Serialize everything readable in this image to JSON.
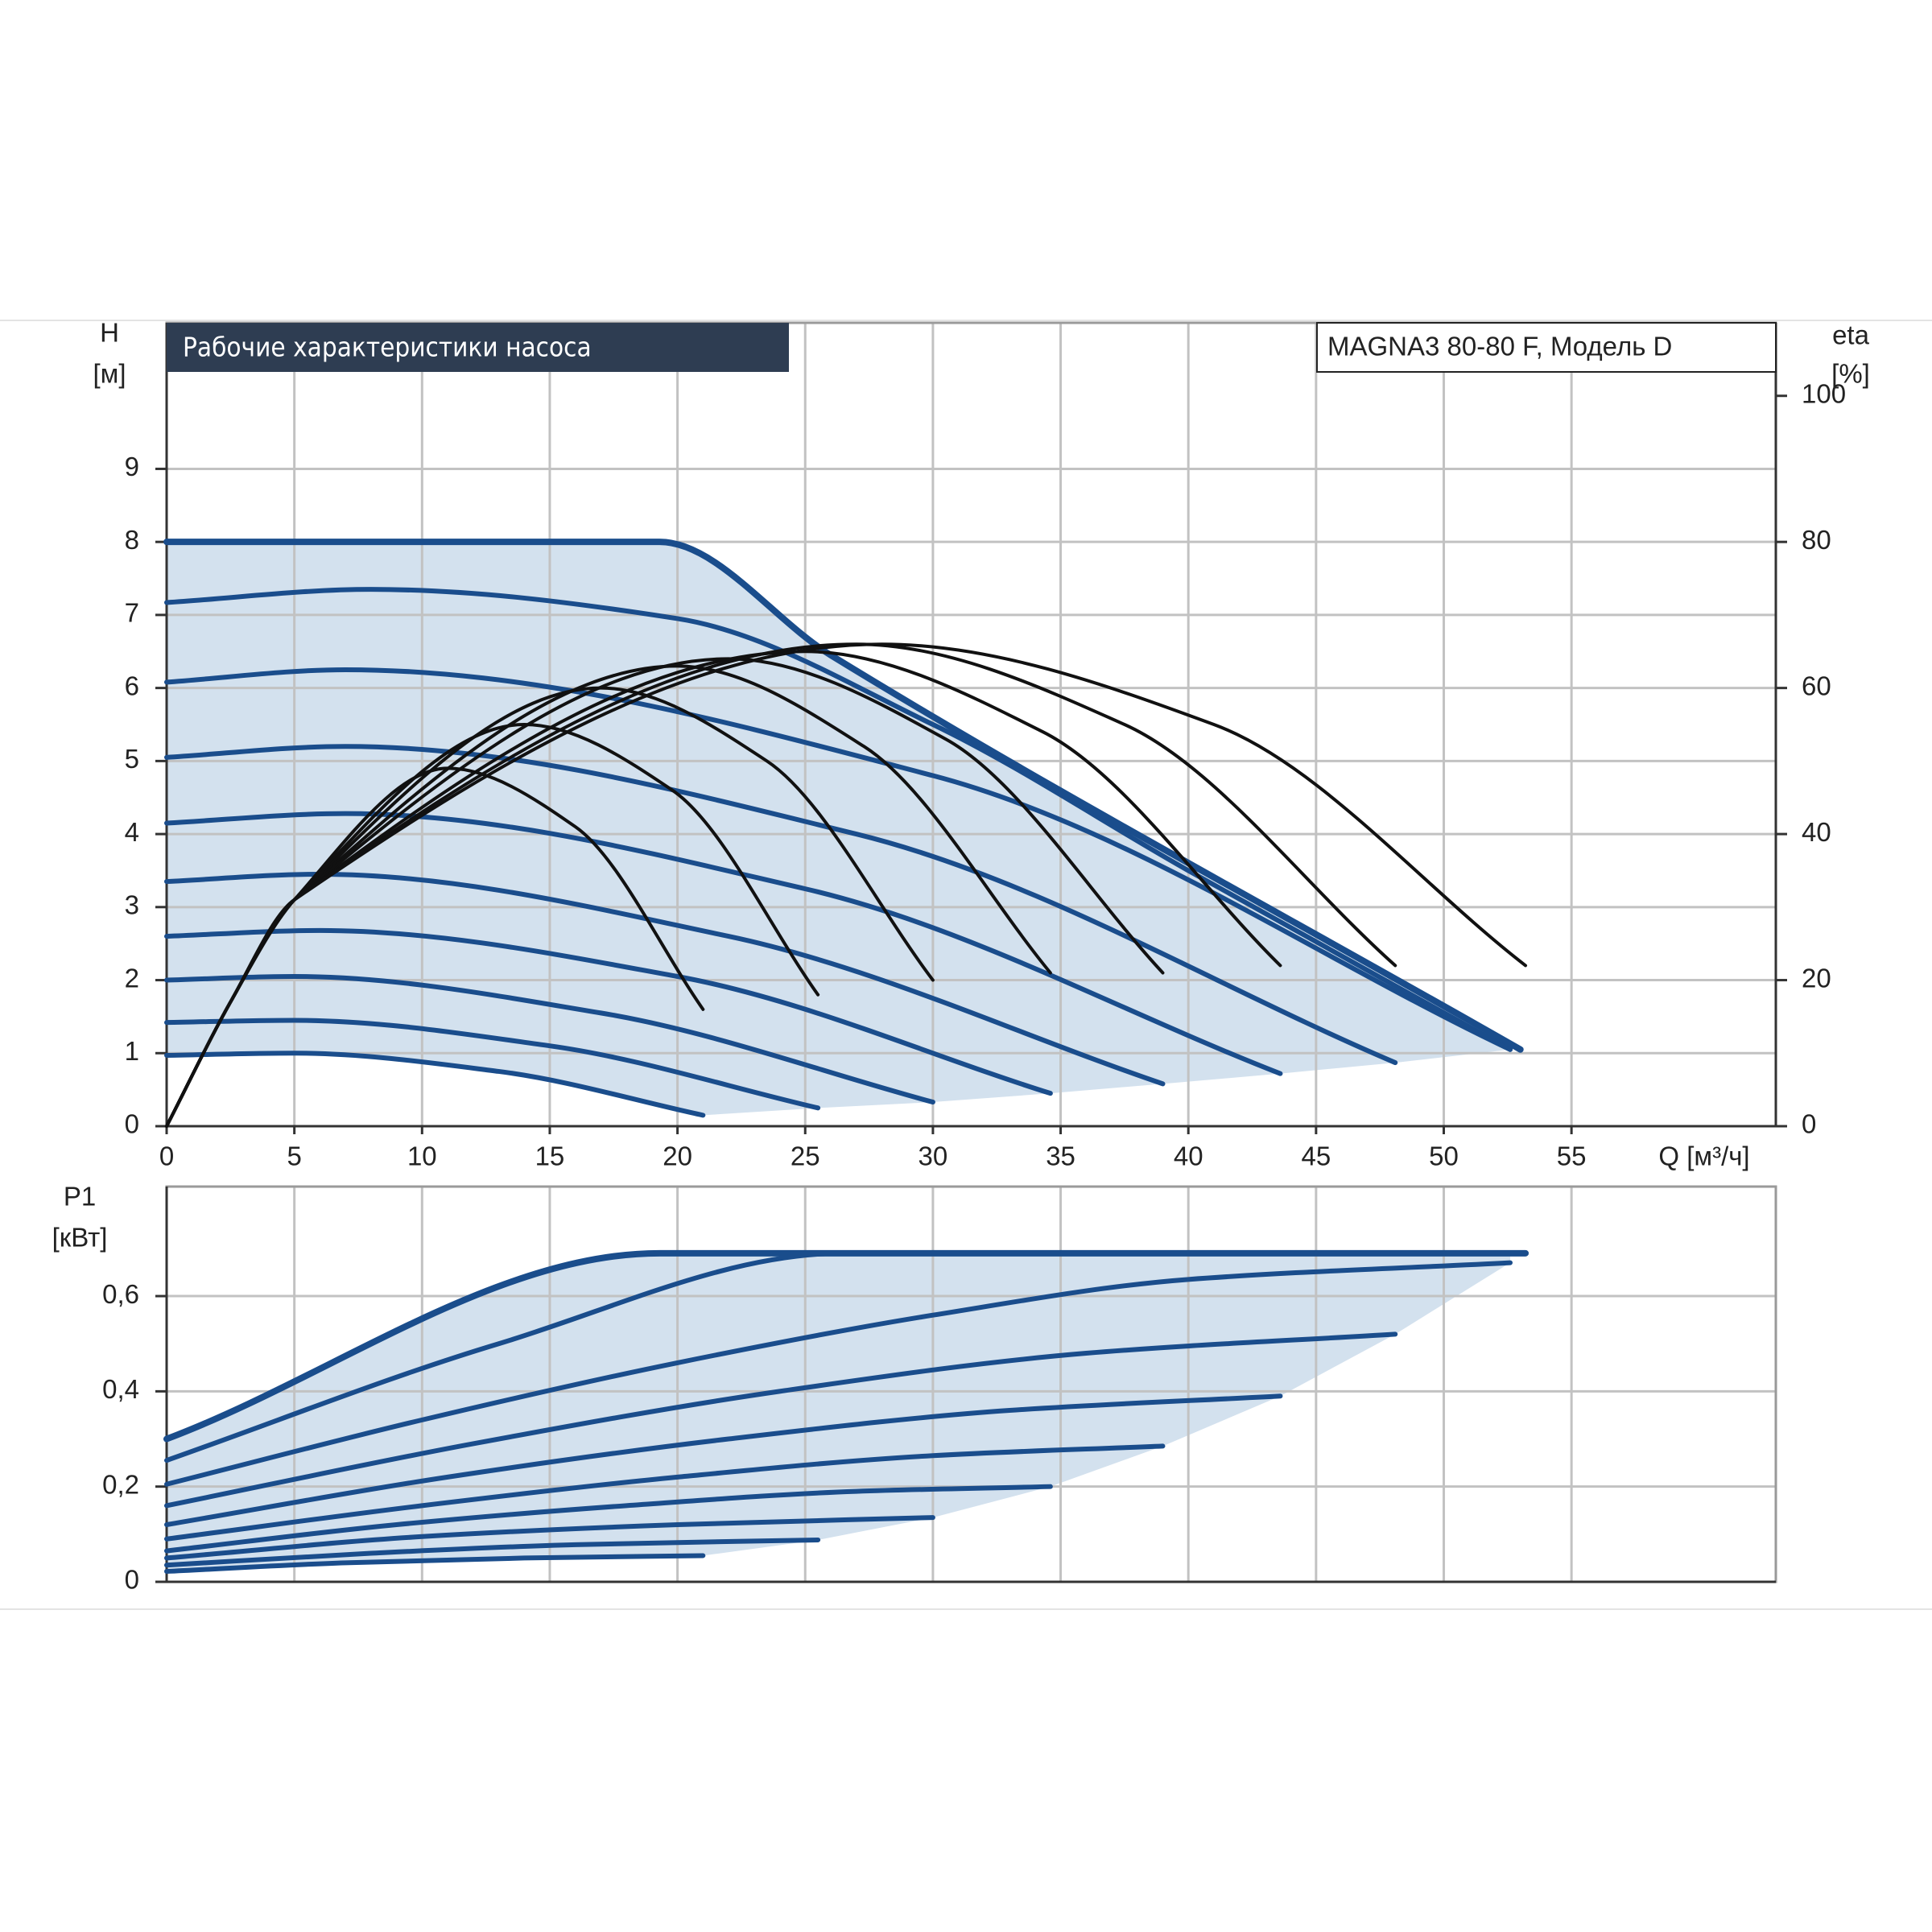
{
  "chart_data": [
    {
      "type": "line",
      "title": "Рабочие характеристики насоса",
      "model": "MAGNA3 80-80 F, Модель D",
      "ylabel": "H",
      "yunit": "[м]",
      "y2label": "eta",
      "y2unit": "[%]",
      "xlabel": "Q [м³/ч]",
      "xlim": [
        0,
        63
      ],
      "xticks": [
        0,
        5,
        10,
        15,
        20,
        25,
        30,
        35,
        40,
        45,
        50,
        55
      ],
      "ylim": [
        0,
        11
      ],
      "yticks": [
        0,
        1,
        2,
        3,
        4,
        5,
        6,
        7,
        8,
        9
      ],
      "y2lim": [
        0,
        110
      ],
      "y2ticks": [
        0,
        20,
        40,
        60,
        80,
        100
      ],
      "grid": true,
      "area_color": "#d3e1ee",
      "series": [
        {
          "color": "#1a4d8c",
          "x": [
            0,
            5,
            13,
            21
          ],
          "values": [
            0.97,
            1.0,
            0.75,
            0.15
          ]
        },
        {
          "color": "#1a4d8c",
          "x": [
            0,
            5,
            15,
            25.5
          ],
          "values": [
            1.42,
            1.45,
            1.1,
            0.25
          ]
        },
        {
          "color": "#1a4d8c",
          "x": [
            0,
            5,
            17,
            30
          ],
          "values": [
            2.0,
            2.05,
            1.55,
            0.33
          ]
        },
        {
          "color": "#1a4d8c",
          "x": [
            0,
            6,
            20,
            34.6
          ],
          "values": [
            2.6,
            2.68,
            2.05,
            0.45
          ]
        },
        {
          "color": "#1a4d8c",
          "x": [
            0,
            6,
            22,
            39
          ],
          "values": [
            3.35,
            3.45,
            2.6,
            0.58
          ]
        },
        {
          "color": "#1a4d8c",
          "x": [
            0,
            7,
            25,
            43.6
          ],
          "values": [
            4.15,
            4.28,
            3.25,
            0.72
          ]
        },
        {
          "color": "#1a4d8c",
          "x": [
            0,
            7,
            27,
            48.1
          ],
          "values": [
            5.05,
            5.2,
            4.0,
            0.87
          ]
        },
        {
          "color": "#1a4d8c",
          "x": [
            0,
            7,
            30,
            52.6
          ],
          "values": [
            6.08,
            6.25,
            4.8,
            1.05
          ]
        },
        {
          "color": "#1a4d8c",
          "x": [
            0,
            8,
            20,
            30,
            40,
            52.6
          ],
          "values": [
            7.17,
            7.35,
            6.95,
            5.5,
            3.5,
            1.05
          ]
        },
        {
          "color": "#1a4d8c",
          "x": [
            0,
            19.3,
            26,
            53
          ],
          "values": [
            8,
            8,
            6.45,
            1.05
          ]
        },
        {
          "color": "#111111",
          "axis": "y2",
          "x": [
            0,
            2.5,
            5,
            11,
            16,
            21
          ],
          "values": [
            0,
            17,
            31,
            49,
            41,
            16
          ]
        },
        {
          "color": "#111111",
          "axis": "y2",
          "x": [
            0,
            2.5,
            5,
            14,
            19.8,
            25.5
          ],
          "values": [
            0,
            17,
            31,
            55,
            46,
            18
          ]
        },
        {
          "color": "#111111",
          "axis": "y2",
          "x": [
            0,
            2.5,
            5,
            17,
            23.5,
            30
          ],
          "values": [
            0,
            17,
            31,
            60,
            50,
            20
          ]
        },
        {
          "color": "#111111",
          "axis": "y2",
          "x": [
            0,
            2.5,
            5,
            20,
            27.3,
            34.6
          ],
          "values": [
            0,
            17,
            31,
            63,
            52,
            21
          ]
        },
        {
          "color": "#111111",
          "axis": "y2",
          "x": [
            0,
            2.5,
            5,
            22,
            30.5,
            39
          ],
          "values": [
            0,
            17,
            31,
            64,
            53,
            21
          ]
        },
        {
          "color": "#111111",
          "axis": "y2",
          "x": [
            0,
            2.5,
            5,
            25,
            34.3,
            43.6
          ],
          "values": [
            0,
            17,
            31,
            65,
            54,
            22
          ]
        },
        {
          "color": "#111111",
          "axis": "y2",
          "x": [
            0,
            2.5,
            5,
            27,
            37.5,
            48.1
          ],
          "values": [
            0,
            17,
            31,
            66,
            55,
            22
          ]
        },
        {
          "color": "#111111",
          "axis": "y2",
          "x": [
            0,
            2.5,
            5,
            28,
            41,
            53.2
          ],
          "values": [
            0,
            17,
            31,
            66,
            55,
            22
          ]
        }
      ]
    },
    {
      "type": "line",
      "ylabel": "P1",
      "yunit": "[кВт]",
      "xlim": [
        0,
        63
      ],
      "ylim": [
        0,
        0.83
      ],
      "yticks": [
        0,
        {
          "value": 0.2,
          "label": "0,2"
        },
        {
          "value": 0.4,
          "label": "0,4"
        },
        {
          "value": 0.6,
          "label": "0,6"
        }
      ],
      "grid": true,
      "area_color": "#d3e1ee",
      "series": [
        {
          "color": "#1a4d8c",
          "x": [
            0,
            7,
            14,
            21
          ],
          "values": [
            0.022,
            0.04,
            0.05,
            0.055
          ]
        },
        {
          "color": "#1a4d8c",
          "x": [
            0,
            8,
            16,
            25.5
          ],
          "values": [
            0.035,
            0.06,
            0.078,
            0.088
          ]
        },
        {
          "color": "#1a4d8c",
          "x": [
            0,
            10,
            20,
            30
          ],
          "values": [
            0.05,
            0.095,
            0.12,
            0.135
          ]
        },
        {
          "color": "#1a4d8c",
          "x": [
            0,
            9,
            18,
            27,
            34.6
          ],
          "values": [
            0.065,
            0.12,
            0.16,
            0.19,
            0.2
          ]
        },
        {
          "color": "#1a4d8c",
          "x": [
            0,
            10,
            20,
            30,
            39
          ],
          "values": [
            0.09,
            0.16,
            0.22,
            0.265,
            0.285
          ]
        },
        {
          "color": "#1a4d8c",
          "x": [
            0,
            11,
            22,
            33,
            43.6
          ],
          "values": [
            0.12,
            0.22,
            0.3,
            0.36,
            0.39
          ]
        },
        {
          "color": "#1a4d8c",
          "x": [
            0,
            12,
            24,
            36,
            48.1
          ],
          "values": [
            0.16,
            0.29,
            0.4,
            0.48,
            0.52
          ]
        },
        {
          "color": "#1a4d8c",
          "x": [
            0,
            10,
            20,
            30,
            40,
            52.6
          ],
          "values": [
            0.205,
            0.34,
            0.46,
            0.56,
            0.635,
            0.67
          ]
        },
        {
          "color": "#1a4d8c",
          "x": [
            0,
            13,
            26.5,
            52.6
          ],
          "values": [
            0.255,
            0.5,
            0.69,
            0.69
          ]
        },
        {
          "color": "#1a4d8c",
          "x": [
            0,
            19.3,
            53.2
          ],
          "values": [
            0.3,
            0.69,
            0.69
          ]
        }
      ]
    }
  ]
}
